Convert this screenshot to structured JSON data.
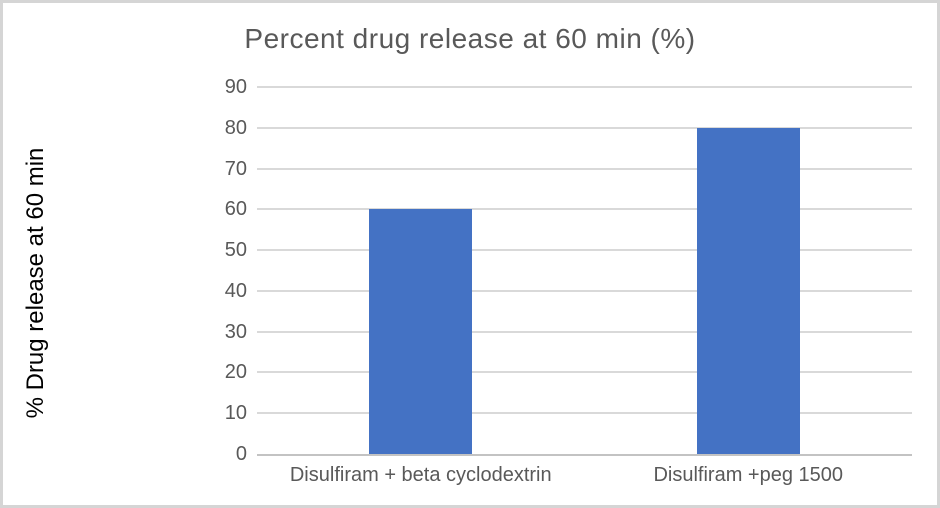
{
  "chart_data": {
    "type": "bar",
    "title": "Percent drug release at 60 min (%)",
    "xlabel": "",
    "ylabel": "% Drug release at 60 min",
    "categories": [
      "Disulfiram + beta cyclodextrin",
      "Disulfiram +peg 1500"
    ],
    "values": [
      60,
      80
    ],
    "yticks": [
      0,
      10,
      20,
      30,
      40,
      50,
      60,
      70,
      80,
      90
    ],
    "ylim": [
      0,
      90
    ],
    "grid": true,
    "legend": "none",
    "colors": {
      "bar": "#4472C4",
      "gridline": "#d9d9d9",
      "axis_line": "#c3c3c3",
      "title_text": "#595959",
      "tick_text": "#595959",
      "ylabel_text": "#000000",
      "frame_border": "#d5d5d5",
      "background": "#ffffff"
    }
  }
}
